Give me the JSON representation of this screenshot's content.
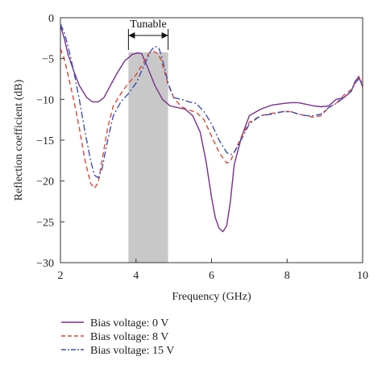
{
  "chart_data": {
    "type": "line",
    "xlabel": "Frequency (GHz)",
    "ylabel": "Reflection coefficient (dB)",
    "xlim": [
      2,
      10
    ],
    "ylim": [
      -30,
      0
    ],
    "xticks": [
      "2",
      "4",
      "6",
      "8",
      "10"
    ],
    "yticks": [
      "0",
      "−5",
      "−10",
      "−15",
      "−20",
      "−25",
      "−30"
    ],
    "grid": false,
    "legend_position": "bottom-left",
    "annotation": {
      "text": "Tunable",
      "band": [
        3.8,
        4.85
      ],
      "band_color": "#c8c8c8"
    },
    "series": [
      {
        "name": "Bias voltage: 0 V",
        "color": "#7b2d8e",
        "dash": "solid",
        "x": [
          2.0,
          2.1,
          2.2,
          2.35,
          2.5,
          2.7,
          2.85,
          3.0,
          3.15,
          3.3,
          3.5,
          3.7,
          3.9,
          4.05,
          4.15,
          4.3,
          4.5,
          4.7,
          4.9,
          5.1,
          5.3,
          5.5,
          5.7,
          5.85,
          6.0,
          6.1,
          6.2,
          6.3,
          6.4,
          6.5,
          6.6,
          6.8,
          7.0,
          7.3,
          7.6,
          7.9,
          8.1,
          8.3,
          8.5,
          8.7,
          8.9,
          9.1,
          9.3,
          9.5,
          9.7,
          9.8,
          9.9,
          10.0
        ],
        "y": [
          -1.0,
          -2.5,
          -4.5,
          -6.5,
          -8.3,
          -9.8,
          -10.3,
          -10.3,
          -9.8,
          -8.5,
          -6.8,
          -5.3,
          -4.5,
          -4.3,
          -4.4,
          -6.0,
          -8.3,
          -10.0,
          -10.8,
          -11.0,
          -11.2,
          -12.0,
          -14.0,
          -17.5,
          -22.0,
          -24.5,
          -25.8,
          -26.2,
          -25.5,
          -22.5,
          -18.0,
          -14.5,
          -12.0,
          -11.2,
          -10.7,
          -10.5,
          -10.4,
          -10.4,
          -10.6,
          -10.8,
          -10.9,
          -10.8,
          -10.0,
          -9.8,
          -9.0,
          -7.8,
          -7.2,
          -8.5
        ]
      },
      {
        "name": "Bias voltage: 8 V",
        "color": "#e0452d",
        "dash": "dashed",
        "x": [
          2.0,
          2.1,
          2.2,
          2.35,
          2.5,
          2.65,
          2.8,
          2.9,
          3.0,
          3.1,
          3.25,
          3.4,
          3.6,
          3.8,
          4.0,
          4.2,
          4.35,
          4.45,
          4.55,
          4.65,
          4.75,
          4.85,
          5.0,
          5.2,
          5.4,
          5.6,
          5.8,
          6.0,
          6.2,
          6.4,
          6.5,
          6.6,
          6.8,
          7.0,
          7.3,
          7.6,
          7.9,
          8.1,
          8.3,
          8.5,
          8.7,
          8.9,
          9.1,
          9.3,
          9.5,
          9.7,
          9.8,
          9.9,
          10.0
        ],
        "y": [
          -3.8,
          -5.0,
          -7.0,
          -10.0,
          -13.5,
          -17.5,
          -20.3,
          -20.9,
          -20.2,
          -17.5,
          -13.5,
          -10.8,
          -9.3,
          -8.0,
          -7.0,
          -5.5,
          -4.3,
          -4.1,
          -4.3,
          -5.0,
          -6.5,
          -8.2,
          -9.8,
          -10.9,
          -11.3,
          -11.6,
          -12.5,
          -14.5,
          -16.5,
          -17.8,
          -17.6,
          -16.5,
          -14.5,
          -12.8,
          -12.0,
          -11.7,
          -11.5,
          -11.5,
          -11.8,
          -12.0,
          -12.2,
          -12.0,
          -11.0,
          -10.5,
          -9.5,
          -8.8,
          -8.0,
          -7.4,
          -8.3
        ]
      },
      {
        "name": "Bias voltage: 15 V",
        "color": "#3a4fb8",
        "dash": "dashdot",
        "x": [
          2.0,
          2.1,
          2.2,
          2.35,
          2.5,
          2.65,
          2.8,
          2.9,
          3.0,
          3.1,
          3.25,
          3.4,
          3.6,
          3.8,
          4.0,
          4.2,
          4.4,
          4.5,
          4.6,
          4.65,
          4.75,
          4.85,
          5.0,
          5.2,
          5.4,
          5.6,
          5.8,
          6.0,
          6.2,
          6.4,
          6.5,
          6.6,
          6.8,
          7.0,
          7.3,
          7.6,
          7.9,
          8.1,
          8.3,
          8.5,
          8.7,
          8.9,
          9.1,
          9.3,
          9.5,
          9.7,
          9.8,
          9.9,
          10.0
        ],
        "y": [
          -0.8,
          -1.8,
          -3.5,
          -6.5,
          -10.0,
          -14.0,
          -17.5,
          -19.3,
          -19.6,
          -18.5,
          -15.0,
          -12.0,
          -10.3,
          -9.3,
          -8.0,
          -6.0,
          -4.0,
          -3.5,
          -3.7,
          -4.3,
          -6.0,
          -8.0,
          -9.8,
          -10.0,
          -10.3,
          -10.5,
          -11.5,
          -13.0,
          -15.0,
          -16.5,
          -16.8,
          -16.5,
          -14.8,
          -13.0,
          -12.0,
          -11.8,
          -11.5,
          -11.5,
          -11.8,
          -12.0,
          -12.0,
          -11.8,
          -11.0,
          -10.5,
          -9.8,
          -9.0,
          -8.0,
          -7.5,
          -8.0
        ]
      }
    ]
  }
}
